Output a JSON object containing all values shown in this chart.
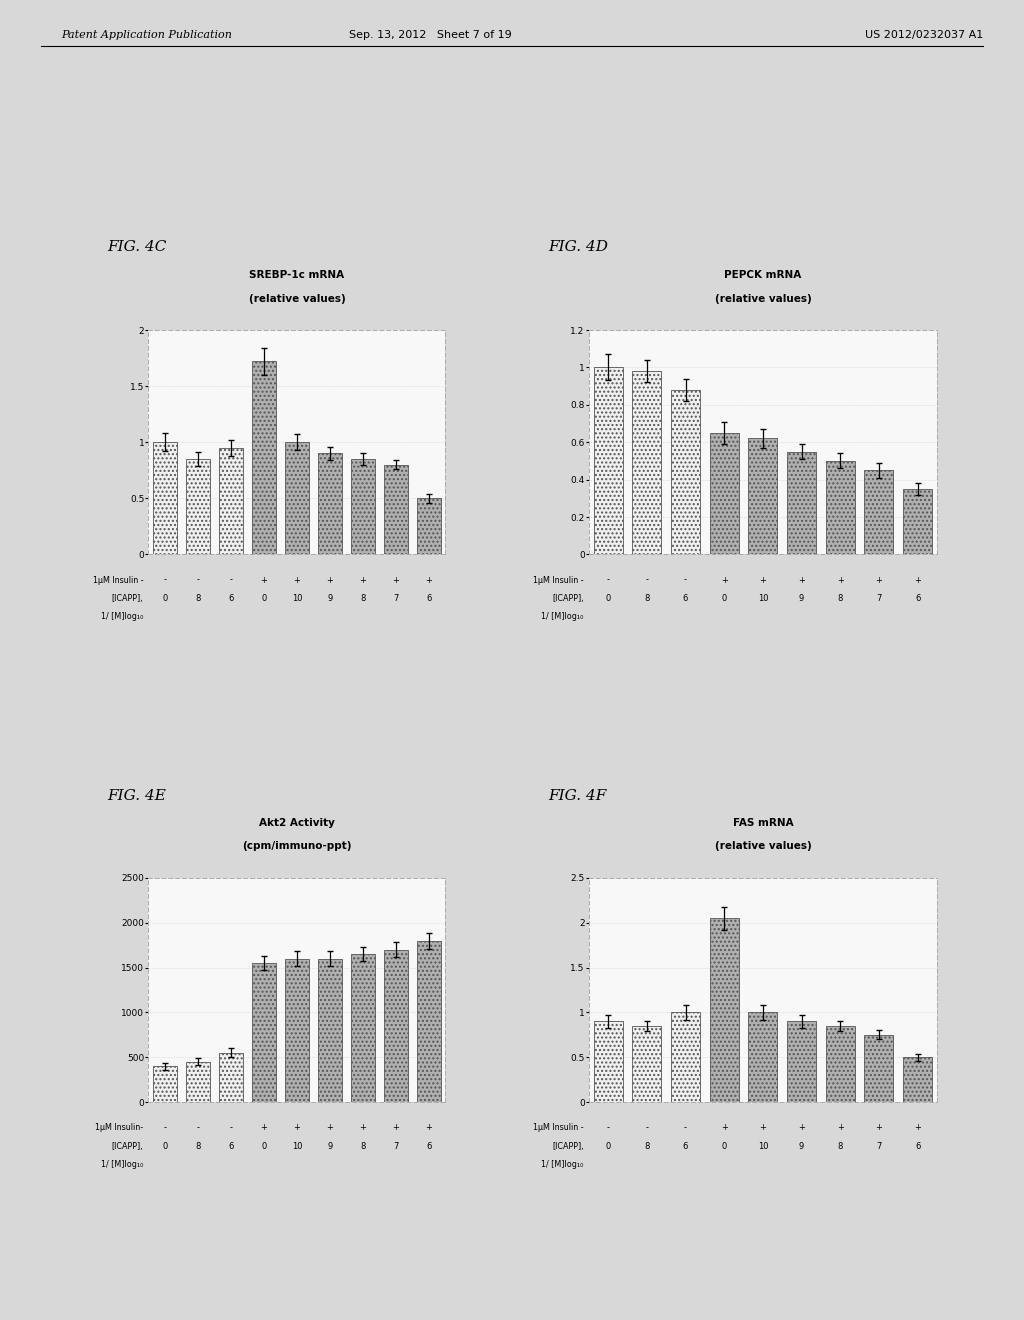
{
  "header_left": "Patent Application Publication",
  "header_center": "Sep. 13, 2012   Sheet 7 of 19",
  "header_right": "US 2012/0232037 A1",
  "fig4c": {
    "label": "FIG. 4C",
    "title_line1": "SREBP-1c mRNA",
    "title_line2": "(relative values)",
    "ylim": [
      0,
      2
    ],
    "yticks": [
      0,
      0.5,
      1.0,
      1.5,
      2.0
    ],
    "yticklabels": [
      "0",
      "0.5",
      "1",
      "1.5",
      "2"
    ],
    "bar_values": [
      1.0,
      0.85,
      0.95,
      1.72,
      1.0,
      0.9,
      0.85,
      0.8,
      0.5
    ],
    "bar_errors": [
      0.08,
      0.06,
      0.07,
      0.12,
      0.07,
      0.06,
      0.05,
      0.04,
      0.04
    ],
    "bar_styles": [
      "white",
      "white",
      "white",
      "gray",
      "gray",
      "gray",
      "gray",
      "gray",
      "gray"
    ],
    "insulin_row": [
      "-",
      "-",
      "-",
      "+",
      "+",
      "+",
      "+",
      "+",
      "+"
    ],
    "icapp_row": [
      "0",
      "8",
      "6",
      "0",
      "10",
      "9",
      "8",
      "7",
      "6"
    ],
    "xlabel1": "1μM Insulin -",
    "xlabel2": "[ICAPP],",
    "xlabel3": "1/ [M]log₁₀"
  },
  "fig4d": {
    "label": "FIG. 4D",
    "title_line1": "PEPCK mRNA",
    "title_line2": "(relative values)",
    "ylim": [
      0,
      1.2
    ],
    "yticks": [
      0,
      0.2,
      0.4,
      0.6,
      0.8,
      1.0,
      1.2
    ],
    "yticklabels": [
      "0",
      "0.2",
      "0.4",
      "0.6",
      "0.8",
      "1",
      "1.2"
    ],
    "bar_values": [
      1.0,
      0.98,
      0.88,
      0.65,
      0.62,
      0.55,
      0.5,
      0.45,
      0.35
    ],
    "bar_errors": [
      0.07,
      0.06,
      0.06,
      0.06,
      0.05,
      0.04,
      0.04,
      0.04,
      0.03
    ],
    "bar_styles": [
      "white",
      "white",
      "white",
      "gray",
      "gray",
      "gray",
      "gray",
      "gray",
      "gray"
    ],
    "insulin_row": [
      "-",
      "-",
      "-",
      "+",
      "+",
      "+",
      "+",
      "+",
      "+"
    ],
    "icapp_row": [
      "0",
      "8",
      "6",
      "0",
      "10",
      "9",
      "8",
      "7",
      "6"
    ],
    "xlabel1": "1μM Insulin -",
    "xlabel2": "[ICAPP],",
    "xlabel3": "1/ [M]log₁₀"
  },
  "fig4e": {
    "label": "FIG. 4E",
    "title_line1": "Akt2 Activity",
    "title_line2": "(cpm/immuno-ppt)",
    "ylim": [
      0,
      2500
    ],
    "yticks": [
      0,
      500,
      1000,
      1500,
      2000,
      2500
    ],
    "yticklabels": [
      "0",
      "500",
      "1000",
      "1500",
      "2000",
      "2500"
    ],
    "bar_values": [
      400,
      450,
      550,
      1550,
      1600,
      1600,
      1650,
      1700,
      1800
    ],
    "bar_errors": [
      40,
      40,
      50,
      80,
      80,
      80,
      80,
      80,
      90
    ],
    "bar_styles": [
      "white",
      "white",
      "white",
      "gray",
      "gray",
      "gray",
      "gray",
      "gray",
      "gray"
    ],
    "insulin_row": [
      "-",
      "-",
      "-",
      "+",
      "+",
      "+",
      "+",
      "+",
      "+"
    ],
    "icapp_row": [
      "0",
      "8",
      "6",
      "0",
      "10",
      "9",
      "8",
      "7",
      "6"
    ],
    "xlabel1": "1μM Insulin-",
    "xlabel2": "[ICAPP],",
    "xlabel3": "1/ [M]log₁₀"
  },
  "fig4f": {
    "label": "FIG. 4F",
    "title_line1": "FAS mRNA",
    "title_line2": "(relative values)",
    "ylim": [
      0,
      2.5
    ],
    "yticks": [
      0,
      0.5,
      1.0,
      1.5,
      2.0,
      2.5
    ],
    "yticklabels": [
      "0",
      "0.5",
      "1",
      "1.5",
      "2",
      "2.5"
    ],
    "bar_values": [
      0.9,
      0.85,
      1.0,
      2.05,
      1.0,
      0.9,
      0.85,
      0.75,
      0.5
    ],
    "bar_errors": [
      0.07,
      0.06,
      0.08,
      0.13,
      0.08,
      0.07,
      0.06,
      0.05,
      0.04
    ],
    "bar_styles": [
      "white",
      "white",
      "white",
      "gray",
      "gray",
      "gray",
      "gray",
      "gray",
      "gray"
    ],
    "insulin_row": [
      "-",
      "-",
      "-",
      "+",
      "+",
      "+",
      "+",
      "+",
      "+"
    ],
    "icapp_row": [
      "0",
      "8",
      "6",
      "0",
      "10",
      "9",
      "8",
      "7",
      "6"
    ],
    "xlabel1": "1μM Insulin -",
    "xlabel2": "[ICAPP],",
    "xlabel3": "1/ [M]log₁₀"
  },
  "white_bar_color": "#f0f0f0",
  "gray_bar_color": "#b0b0b0",
  "bar_edge_color": "#555555",
  "plot_bg": "#f8f8f8",
  "page_bg": "#d8d8d8"
}
